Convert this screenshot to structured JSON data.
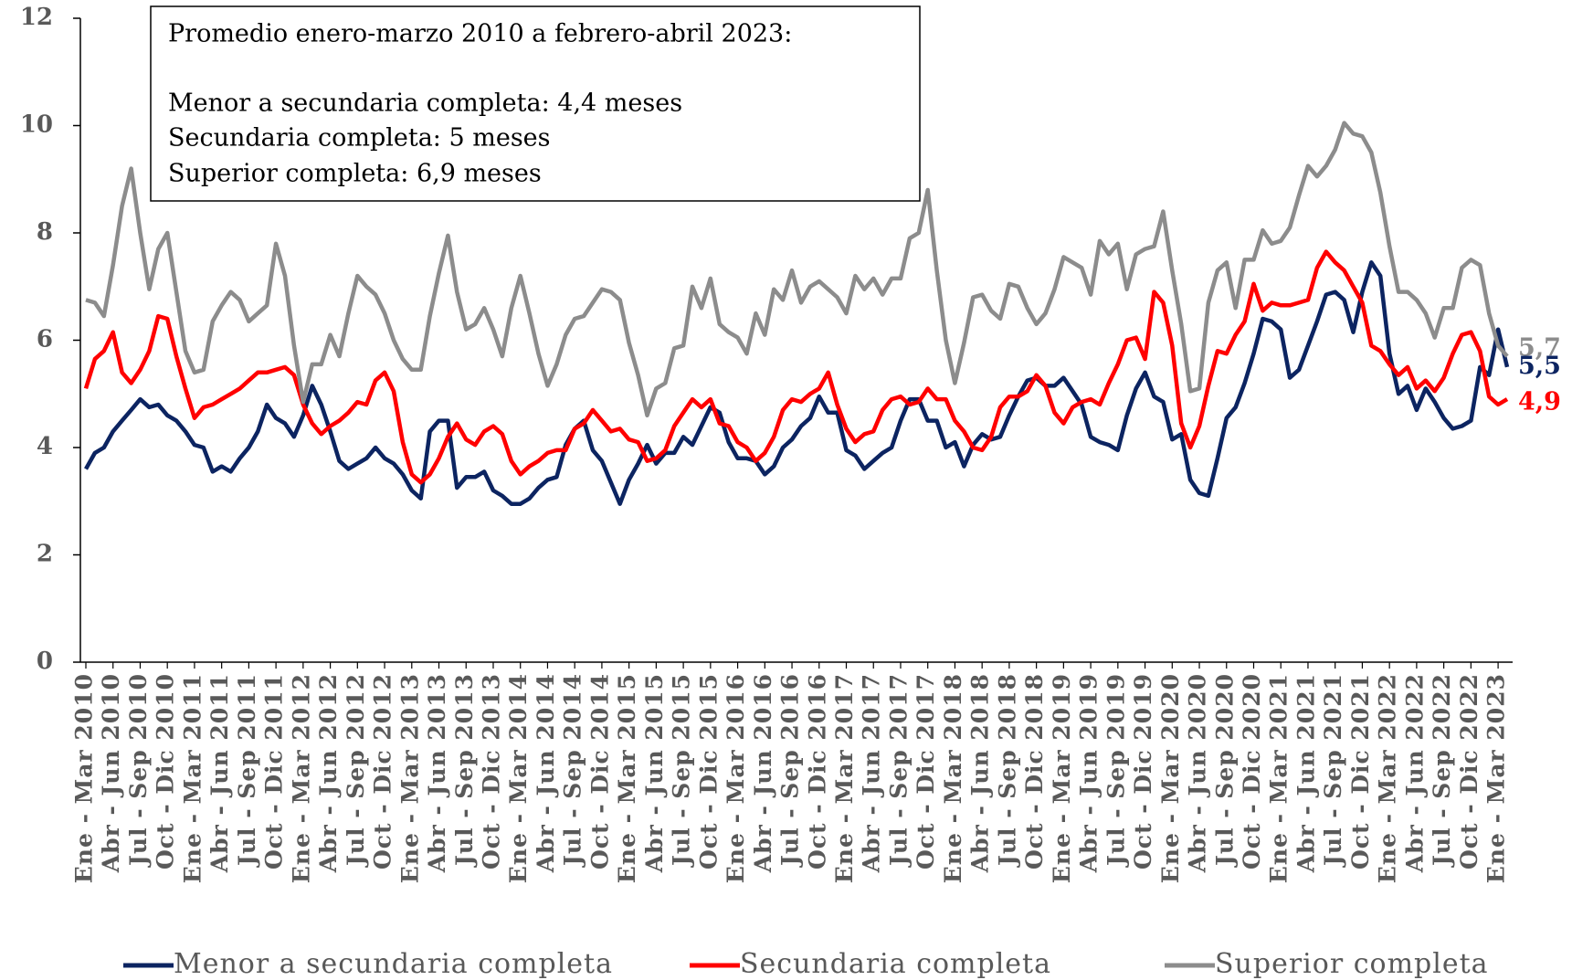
{
  "chart_data": {
    "type": "line",
    "annotation": [
      "Promedio enero-marzo 2010 a febrero-abril 2023:",
      "Menor a secundaria completa: 4,4 meses",
      "Secundaria completa: 5 meses",
      "Superior completa: 6,9 meses"
    ],
    "categories": [
      "Ene - Mar 2010",
      null,
      null,
      "Abr - Jun 2010",
      null,
      null,
      "Jul - Sep 2010",
      null,
      null,
      "Oct - Dic 2010",
      null,
      null,
      "Ene - Mar 2011",
      null,
      null,
      "Abr - Jun 2011",
      null,
      null,
      "Jul - Sep 2011",
      null,
      null,
      "Oct - Dic 2011",
      null,
      null,
      "Ene - Mar 2012",
      null,
      null,
      "Abr - Jun 2012",
      null,
      null,
      "Jul - Sep 2012",
      null,
      null,
      "Oct - Dic 2012",
      null,
      null,
      "Ene - Mar 2013",
      null,
      null,
      "Abr - Jun 2013",
      null,
      null,
      "Jul - Sep 2013",
      null,
      null,
      "Oct - Dic 2013",
      null,
      null,
      "Ene - Mar 2014",
      null,
      null,
      "Abr - Jun 2014",
      null,
      null,
      "Jul - Sep 2014",
      null,
      null,
      "Oct - Dic 2014",
      null,
      null,
      "Ene - Mar 2015",
      null,
      null,
      "Abr - Jun 2015",
      null,
      null,
      "Jul - Sep 2015",
      null,
      null,
      "Oct - Dic 2015",
      null,
      null,
      "Ene - Mar 2016",
      null,
      null,
      "Abr - Jun 2016",
      null,
      null,
      "Jul - Sep 2016",
      null,
      null,
      "Oct - Dic 2016",
      null,
      null,
      "Ene - Mar 2017",
      null,
      null,
      "Abr - Jun 2017",
      null,
      null,
      "Jul - Sep 2017",
      null,
      null,
      "Oct - Dic 2017",
      null,
      null,
      "Ene - Mar 2018",
      null,
      null,
      "Abr - Jun 2018",
      null,
      null,
      "Jul - Sep 2018",
      null,
      null,
      "Oct - Dic 2018",
      null,
      null,
      "Ene - Mar 2019",
      null,
      null,
      "Abr - Jun 2019",
      null,
      null,
      "Jul - Sep 2019",
      null,
      null,
      "Oct - Dic 2019",
      null,
      null,
      "Ene - Mar 2020",
      null,
      null,
      "Abr - Jun 2020",
      null,
      null,
      "Jul - Sep 2020",
      null,
      null,
      "Oct - Dic 2020",
      null,
      null,
      "Ene - Mar 2021",
      null,
      null,
      "Abr - Jun 2021",
      null,
      null,
      "Jul - Sep 2021",
      null,
      null,
      "Oct - Dic 2021",
      null,
      null,
      "Ene - Mar 2022",
      null,
      null,
      "Abr - Jun 2022",
      null,
      null,
      "Jul - Sep 2022",
      null,
      null,
      "Oct - Dic 2022",
      null,
      null,
      "Ene - Mar 2023",
      null
    ],
    "series": [
      {
        "name": "Menor a secundaria completa",
        "color": "#0c2461",
        "end_label": "5,5",
        "values": [
          3.6,
          3.9,
          4.0,
          4.3,
          4.5,
          4.7,
          4.9,
          4.75,
          4.8,
          4.6,
          4.5,
          4.3,
          4.05,
          4.0,
          3.55,
          3.65,
          3.55,
          3.8,
          4.0,
          4.3,
          4.8,
          4.55,
          4.45,
          4.2,
          4.6,
          5.15,
          4.8,
          4.3,
          3.75,
          3.6,
          3.7,
          3.8,
          4.0,
          3.8,
          3.7,
          3.5,
          3.2,
          3.05,
          4.3,
          4.5,
          4.5,
          3.25,
          3.45,
          3.45,
          3.55,
          3.2,
          3.1,
          2.95,
          2.95,
          3.05,
          3.25,
          3.4,
          3.45,
          4.05,
          4.35,
          4.5,
          3.95,
          3.75,
          3.35,
          2.95,
          3.4,
          3.7,
          4.05,
          3.7,
          3.9,
          3.9,
          4.2,
          4.05,
          4.4,
          4.75,
          4.65,
          4.1,
          3.8,
          3.8,
          3.75,
          3.5,
          3.65,
          4.0,
          4.15,
          4.4,
          4.55,
          4.95,
          4.65,
          4.65,
          3.95,
          3.85,
          3.6,
          3.75,
          3.9,
          4.0,
          4.5,
          4.9,
          4.9,
          4.5,
          4.5,
          4.0,
          4.1,
          3.65,
          4.05,
          4.25,
          4.15,
          4.2,
          4.6,
          4.95,
          5.25,
          5.3,
          5.15,
          5.15,
          5.3,
          5.05,
          4.8,
          4.2,
          4.1,
          4.05,
          3.95,
          4.6,
          5.1,
          5.4,
          4.95,
          4.85,
          4.15,
          4.25,
          3.4,
          3.15,
          3.1,
          3.8,
          4.55,
          4.75,
          5.2,
          5.75,
          6.4,
          6.35,
          6.2,
          5.3,
          5.45,
          5.9,
          6.35,
          6.85,
          6.9,
          6.75,
          6.15,
          6.9,
          7.45,
          7.2,
          5.75,
          5.0,
          5.15,
          4.7,
          5.1,
          4.85,
          4.55,
          4.35,
          4.4,
          4.5,
          5.5,
          5.35,
          6.2,
          5.5
        ]
      },
      {
        "name": "Secundaria completa",
        "color": "#ff0000",
        "end_label": "4,9",
        "values": [
          5.1,
          5.65,
          5.8,
          6.15,
          5.4,
          5.2,
          5.45,
          5.8,
          6.45,
          6.4,
          5.7,
          5.1,
          4.55,
          4.75,
          4.8,
          4.9,
          5.0,
          5.1,
          5.25,
          5.4,
          5.4,
          5.45,
          5.5,
          5.35,
          4.8,
          4.45,
          4.25,
          4.4,
          4.5,
          4.65,
          4.85,
          4.8,
          5.25,
          5.4,
          5.05,
          4.1,
          3.5,
          3.35,
          3.5,
          3.8,
          4.2,
          4.45,
          4.15,
          4.05,
          4.3,
          4.4,
          4.25,
          3.75,
          3.5,
          3.65,
          3.75,
          3.9,
          3.95,
          3.95,
          4.35,
          4.45,
          4.7,
          4.5,
          4.3,
          4.35,
          4.15,
          4.1,
          3.75,
          3.8,
          3.95,
          4.4,
          4.65,
          4.9,
          4.75,
          4.9,
          4.45,
          4.4,
          4.1,
          4.0,
          3.75,
          3.9,
          4.2,
          4.7,
          4.9,
          4.85,
          5.0,
          5.1,
          5.4,
          4.8,
          4.35,
          4.1,
          4.25,
          4.3,
          4.7,
          4.9,
          4.95,
          4.8,
          4.85,
          5.1,
          4.9,
          4.9,
          4.5,
          4.3,
          4.0,
          3.95,
          4.2,
          4.75,
          4.95,
          4.95,
          5.05,
          5.35,
          5.15,
          4.65,
          4.45,
          4.75,
          4.85,
          4.9,
          4.8,
          5.2,
          5.55,
          6.0,
          6.05,
          5.65,
          6.9,
          6.7,
          5.9,
          4.45,
          4.0,
          4.4,
          5.15,
          5.8,
          5.75,
          6.1,
          6.35,
          7.05,
          6.55,
          6.7,
          6.65,
          6.65,
          6.7,
          6.75,
          7.35,
          7.65,
          7.45,
          7.3,
          7.0,
          6.7,
          5.9,
          5.8,
          5.55,
          5.35,
          5.5,
          5.1,
          5.25,
          5.05,
          5.3,
          5.75,
          6.1,
          6.15,
          5.8,
          4.95,
          4.8,
          4.9
        ]
      },
      {
        "name": "Superior completa",
        "color": "#8c8c8c",
        "end_label": "5,7",
        "values": [
          6.75,
          6.7,
          6.45,
          7.4,
          8.5,
          9.2,
          8.0,
          6.95,
          7.7,
          8.0,
          6.9,
          5.8,
          5.4,
          5.45,
          6.35,
          6.65,
          6.9,
          6.75,
          6.35,
          6.5,
          6.65,
          7.8,
          7.2,
          5.9,
          4.85,
          5.55,
          5.55,
          6.1,
          5.7,
          6.5,
          7.2,
          7.0,
          6.85,
          6.5,
          6.0,
          5.65,
          5.45,
          5.45,
          6.45,
          7.25,
          7.95,
          6.9,
          6.2,
          6.3,
          6.6,
          6.2,
          5.7,
          6.6,
          7.2,
          6.5,
          5.75,
          5.15,
          5.55,
          6.1,
          6.4,
          6.45,
          6.7,
          6.95,
          6.9,
          6.75,
          5.95,
          5.35,
          4.6,
          5.1,
          5.2,
          5.85,
          5.9,
          7.0,
          6.6,
          7.15,
          6.3,
          6.15,
          6.05,
          5.75,
          6.5,
          6.1,
          6.95,
          6.75,
          7.3,
          6.7,
          7.0,
          7.1,
          6.95,
          6.8,
          6.5,
          7.2,
          6.95,
          7.15,
          6.85,
          7.15,
          7.15,
          7.9,
          8.0,
          8.8,
          7.3,
          6.0,
          5.2,
          5.95,
          6.8,
          6.85,
          6.55,
          6.4,
          7.05,
          7.0,
          6.6,
          6.3,
          6.5,
          6.95,
          7.55,
          7.45,
          7.35,
          6.85,
          7.85,
          7.6,
          7.8,
          6.95,
          7.6,
          7.7,
          7.75,
          8.4,
          7.3,
          6.3,
          5.05,
          5.1,
          6.7,
          7.3,
          7.45,
          6.6,
          7.5,
          7.5,
          8.05,
          7.8,
          7.85,
          8.1,
          8.7,
          9.25,
          9.05,
          9.25,
          9.55,
          10.05,
          9.85,
          9.8,
          9.5,
          8.75,
          7.75,
          6.9,
          6.9,
          6.75,
          6.5,
          6.05,
          6.6,
          6.6,
          7.35,
          7.5,
          7.4,
          6.5,
          5.9,
          5.7
        ]
      }
    ],
    "ylim": [
      0,
      12
    ],
    "yticks": [
      0,
      2,
      4,
      6,
      8,
      10,
      12
    ],
    "grid": false,
    "legend": "bottom"
  }
}
